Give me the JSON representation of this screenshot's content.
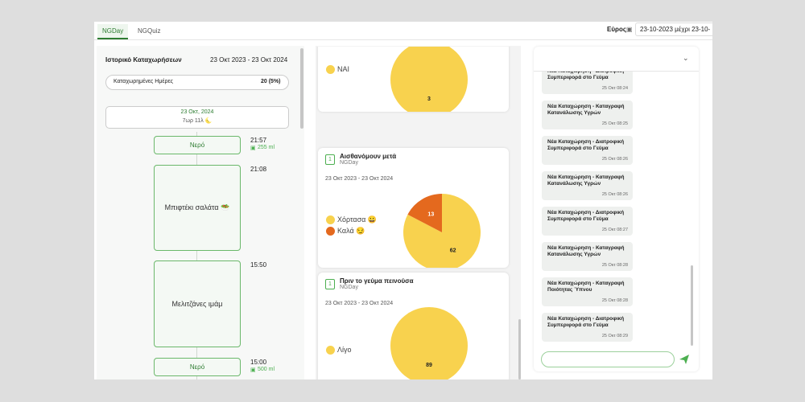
{
  "tabs": [
    "NGDay",
    "NGQuiz"
  ],
  "range": {
    "label": "Εύρος",
    "value": "23-10-2023 μέχρι 23-10-"
  },
  "history": {
    "title": "Ιστορικό Καταχωρήσεων",
    "period": "23 Οκτ 2023 - 23 Οκτ 2024",
    "days_label": "Καταχωρημένες Ημέρες",
    "days_value": "20 (5%)",
    "date": "23 Οκτ, 2024",
    "sleep": "7ωρ 11λ 🌜",
    "entries": [
      {
        "label": "Νερό",
        "time": "21:57",
        "amount": "255 ml"
      },
      {
        "label": "Μπιφτέκι σαλάτα 🥗",
        "time": "21:08"
      },
      {
        "label": "Μελιτζάνες ιμάμ",
        "time": "15:50"
      },
      {
        "label": "Νερό",
        "time": "15:00",
        "amount": "500 ml"
      }
    ]
  },
  "cards": [
    {
      "pie": {
        "labels": [
          "ΝΑΙ"
        ],
        "values": [
          3
        ],
        "colors": [
          "#f8d24e"
        ]
      }
    },
    {
      "title": "Αισθανόμουν μετά",
      "source": "NGDay",
      "period": "23 Οκτ 2023 - 23 Οκτ 2024",
      "pie": {
        "labels": [
          "Χόρτασα 😀",
          "Καλά 😏"
        ],
        "values": [
          62,
          13
        ],
        "colors": [
          "#f8d24e",
          "#e4691e"
        ]
      }
    },
    {
      "title": "Πριν το γεύμα πεινούσα",
      "source": "NGDay",
      "period": "23 Οκτ 2023 - 23 Οκτ 2024",
      "pie": {
        "labels": [
          "Λίγο"
        ],
        "values": [
          89
        ],
        "colors": [
          "#f8d24e"
        ]
      }
    }
  ],
  "notifications": [
    {
      "title": "Νέα Καταχώρηση - Διατροφική Συμπεριφορά στο Γεύμα",
      "time": "25 Οκτ 08:24"
    },
    {
      "title": "Νέα Καταχώρηση - Καταγραφή Κατανάλωσης Υγρών",
      "time": "25 Οκτ 08:25"
    },
    {
      "title": "Νέα Καταχώρηση - Διατροφική Συμπεριφορά στο Γεύμα",
      "time": "25 Οκτ 08:26"
    },
    {
      "title": "Νέα Καταχώρηση - Καταγραφή Κατανάλωσης Υγρών",
      "time": "25 Οκτ 08:26"
    },
    {
      "title": "Νέα Καταχώρηση - Διατροφική Συμπεριφορά στο Γεύμα",
      "time": "25 Οκτ 08:27"
    },
    {
      "title": "Νέα Καταχώρηση - Καταγραφή Κατανάλωσης Υγρών",
      "time": "25 Οκτ 08:28"
    },
    {
      "title": "Νέα Καταχώρηση - Καταγραφή Ποιότητας Ύπνου",
      "time": "25 Οκτ 08:28"
    },
    {
      "title": "Νέα Καταχώρηση - Διατροφική Συμπεριφορά στο Γεύμα",
      "time": "25 Οκτ 08:29"
    }
  ]
}
